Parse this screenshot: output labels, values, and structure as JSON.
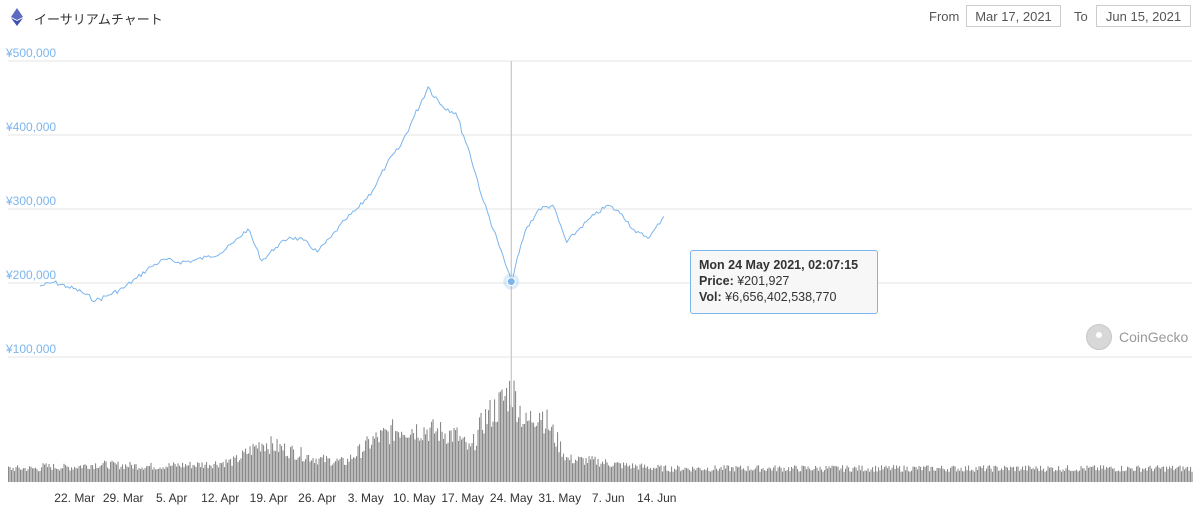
{
  "header": {
    "title": "イーサリアムチャート",
    "from_label": "From",
    "from_value": "Mar 17, 2021",
    "to_label": "To",
    "to_value": "Jun 15, 2021"
  },
  "tooltip": {
    "date": "Mon 24 May 2021, 02:07:15",
    "price_label": "Price:",
    "price_value": "¥201,927",
    "vol_label": "Vol:",
    "vol_value": "¥6,656,402,538,770"
  },
  "watermark": "CoinGecko",
  "colors": {
    "price_line": "#7cb5ec",
    "volume": "#8a8a8a",
    "grid": "#e6e6e6",
    "tick_y": "#7cb5ec",
    "tick_x": "#333333"
  },
  "chart_data": {
    "type": "line",
    "title": "イーサリアムチャート",
    "x_range": [
      "2021-03-17",
      "2021-06-15"
    ],
    "ylim": [
      100000,
      500000
    ],
    "y_ticks": [
      "¥100,000",
      "¥200,000",
      "¥300,000",
      "¥400,000",
      "¥500,000"
    ],
    "y_tick_values": [
      100000,
      200000,
      300000,
      400000,
      500000
    ],
    "x_ticks": [
      "22. Mar",
      "29. Mar",
      "5. Apr",
      "12. Apr",
      "19. Apr",
      "26. Apr",
      "3. May",
      "10. May",
      "17. May",
      "24. May",
      "31. May",
      "7. Jun",
      "14. Jun"
    ],
    "x_tick_dates": [
      "2021-03-22",
      "2021-03-29",
      "2021-04-05",
      "2021-04-12",
      "2021-04-19",
      "2021-04-26",
      "2021-05-03",
      "2021-05-10",
      "2021-05-17",
      "2021-05-24",
      "2021-05-31",
      "2021-06-07",
      "2021-06-14"
    ],
    "price_series": {
      "x": [
        "2021-03-17",
        "2021-03-19",
        "2021-03-21",
        "2021-03-23",
        "2021-03-25",
        "2021-03-27",
        "2021-03-29",
        "2021-03-31",
        "2021-04-02",
        "2021-04-04",
        "2021-04-06",
        "2021-04-08",
        "2021-04-10",
        "2021-04-12",
        "2021-04-14",
        "2021-04-16",
        "2021-04-18",
        "2021-04-20",
        "2021-04-22",
        "2021-04-24",
        "2021-04-26",
        "2021-04-28",
        "2021-04-30",
        "2021-05-02",
        "2021-05-04",
        "2021-05-06",
        "2021-05-08",
        "2021-05-10",
        "2021-05-12",
        "2021-05-14",
        "2021-05-16",
        "2021-05-18",
        "2021-05-20",
        "2021-05-22",
        "2021-05-24",
        "2021-05-26",
        "2021-05-28",
        "2021-05-30",
        "2021-06-01",
        "2021-06-03",
        "2021-06-05",
        "2021-06-07",
        "2021-06-09",
        "2021-06-11",
        "2021-06-13",
        "2021-06-15"
      ],
      "values": [
        196000,
        201000,
        195000,
        188000,
        176000,
        184000,
        193000,
        207000,
        222000,
        232000,
        228000,
        230000,
        235000,
        240000,
        255000,
        273000,
        230000,
        248000,
        262000,
        258000,
        242000,
        262000,
        285000,
        302000,
        325000,
        360000,
        385000,
        425000,
        465000,
        440000,
        430000,
        376000,
        310000,
        258000,
        201927,
        270000,
        300000,
        305000,
        255000,
        275000,
        292000,
        305000,
        293000,
        268000,
        262000,
        290000
      ]
    },
    "volume_series": {
      "x": [
        "2021-03-17",
        "2021-03-21",
        "2021-03-25",
        "2021-03-29",
        "2021-04-02",
        "2021-04-06",
        "2021-04-10",
        "2021-04-14",
        "2021-04-18",
        "2021-04-22",
        "2021-04-26",
        "2021-04-30",
        "2021-05-04",
        "2021-05-08",
        "2021-05-12",
        "2021-05-16",
        "2021-05-18",
        "2021-05-20",
        "2021-05-22",
        "2021-05-24",
        "2021-05-26",
        "2021-05-28",
        "2021-06-01",
        "2021-06-05",
        "2021-06-09",
        "2021-06-13",
        "2021-06-15"
      ],
      "relative": [
        0.15,
        0.14,
        0.17,
        0.16,
        0.15,
        0.16,
        0.17,
        0.2,
        0.38,
        0.3,
        0.22,
        0.19,
        0.4,
        0.52,
        0.5,
        0.45,
        0.3,
        0.6,
        0.72,
        0.9,
        0.55,
        0.7,
        0.22,
        0.2,
        0.16,
        0.14,
        0.13
      ]
    }
  }
}
